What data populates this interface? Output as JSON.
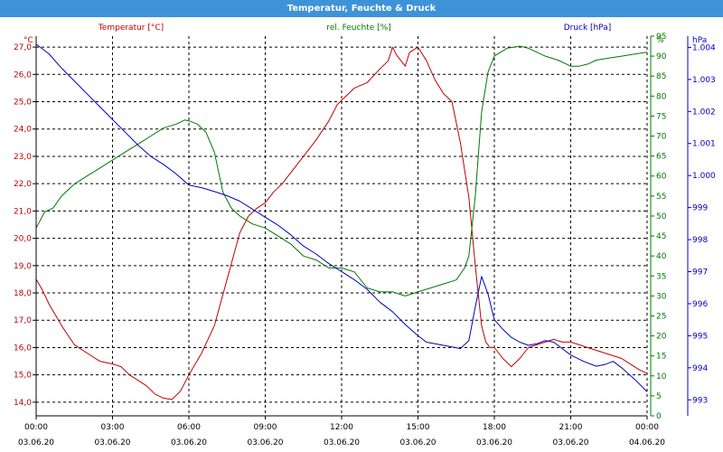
{
  "window": {
    "title": "Temperatur, Feuchte & Druck"
  },
  "colors": {
    "temperature": "#c00000",
    "humidity": "#007800",
    "pressure": "#0000c0",
    "titlebar": "#3e92d8",
    "grid": "#000000"
  },
  "chart_data": {
    "type": "line",
    "title": "Temperatur, Feuchte & Druck",
    "grid": true,
    "x_ticks": [
      {
        "time": "00:00",
        "date": "03.06.20"
      },
      {
        "time": "03:00",
        "date": "03.06.20"
      },
      {
        "time": "06:00",
        "date": "03.06.20"
      },
      {
        "time": "09:00",
        "date": "03.06.20"
      },
      {
        "time": "12:00",
        "date": "03.06.20"
      },
      {
        "time": "15:00",
        "date": "03.06.20"
      },
      {
        "time": "18:00",
        "date": "03.06.20"
      },
      {
        "time": "21:00",
        "date": "03.06.20"
      },
      {
        "time": "00:00",
        "date": "04.06.20"
      }
    ],
    "axes": {
      "temperature": {
        "unit": "°C",
        "range": [
          13.5,
          27.4
        ],
        "ticks": [
          "14,0",
          "15,0",
          "16,0",
          "17,0",
          "18,0",
          "19,0",
          "20,0",
          "21,0",
          "22,0",
          "23,0",
          "24,0",
          "25,0",
          "26,0",
          "27,0"
        ]
      },
      "humidity": {
        "unit": "%",
        "range": [
          0,
          95
        ],
        "ticks": [
          "0",
          "5",
          "10",
          "15",
          "20",
          "25",
          "30",
          "35",
          "40",
          "45",
          "50",
          "55",
          "60",
          "65",
          "70",
          "75",
          "80",
          "85",
          "90",
          "95"
        ]
      },
      "pressure": {
        "unit": "hPa",
        "range": [
          992.5,
          1004.35
        ],
        "ticks": [
          "993",
          "994",
          "995",
          "996",
          "997",
          "998",
          "999",
          "1.000",
          "1.001",
          "1.002",
          "1.003",
          "1.004"
        ]
      }
    },
    "series": [
      {
        "name": "Temperatur [°C]",
        "axis": "temperature",
        "x": [
          "00:00",
          "00:15",
          "00:30",
          "01:00",
          "01:30",
          "02:00",
          "02:30",
          "03:00",
          "03:20",
          "03:40",
          "04:00",
          "04:20",
          "04:40",
          "05:00",
          "05:20",
          "05:40",
          "06:00",
          "06:30",
          "07:00",
          "07:30",
          "08:00",
          "08:20",
          "08:40",
          "09:00",
          "09:20",
          "09:40",
          "10:00",
          "10:30",
          "11:00",
          "11:30",
          "11:50",
          "12:10",
          "12:30",
          "13:00",
          "13:30",
          "13:50",
          "14:00",
          "14:10",
          "14:30",
          "14:40",
          "15:00",
          "15:20",
          "15:40",
          "16:00",
          "16:20",
          "16:40",
          "17:00",
          "17:15",
          "17:30",
          "17:40",
          "17:50",
          "18:00",
          "18:20",
          "18:40",
          "19:00",
          "19:20",
          "19:40",
          "20:00",
          "20:20",
          "20:40",
          "21:00",
          "21:20",
          "21:40",
          "22:00",
          "22:20",
          "22:40",
          "23:00",
          "23:20",
          "23:40",
          "24:00"
        ],
        "values": [
          18.5,
          18.1,
          17.6,
          16.8,
          16.1,
          15.8,
          15.5,
          15.4,
          15.3,
          15.0,
          14.8,
          14.6,
          14.3,
          14.15,
          14.1,
          14.4,
          15.0,
          15.8,
          16.8,
          18.5,
          20.2,
          20.8,
          21.1,
          21.3,
          21.7,
          22.0,
          22.4,
          23.0,
          23.6,
          24.3,
          24.9,
          25.2,
          25.5,
          25.7,
          26.2,
          26.5,
          27.0,
          26.7,
          26.3,
          26.8,
          27.0,
          26.5,
          25.8,
          25.3,
          25.0,
          23.5,
          21.5,
          19.0,
          16.8,
          16.2,
          16.0,
          16.0,
          15.6,
          15.3,
          15.6,
          16.0,
          16.1,
          16.2,
          16.3,
          16.2,
          16.2,
          16.1,
          16.0,
          15.9,
          15.8,
          15.7,
          15.6,
          15.4,
          15.2,
          15.05
        ]
      },
      {
        "name": "rel. Feuchte [%]",
        "axis": "humidity",
        "x": [
          "00:00",
          "00:20",
          "00:40",
          "01:00",
          "01:30",
          "02:00",
          "02:30",
          "03:00",
          "03:30",
          "04:00",
          "04:30",
          "05:00",
          "05:30",
          "05:50",
          "06:00",
          "06:20",
          "06:40",
          "07:00",
          "07:20",
          "07:40",
          "08:00",
          "08:30",
          "09:00",
          "09:30",
          "10:00",
          "10:30",
          "11:00",
          "11:30",
          "12:00",
          "12:30",
          "13:00",
          "13:30",
          "14:00",
          "14:30",
          "15:00",
          "15:30",
          "16:00",
          "16:30",
          "16:50",
          "17:00",
          "17:15",
          "17:30",
          "17:45",
          "18:00",
          "18:30",
          "19:00",
          "19:20",
          "19:40",
          "20:00",
          "20:30",
          "21:00",
          "21:20",
          "21:40",
          "22:00",
          "22:30",
          "23:00",
          "23:30",
          "24:00"
        ],
        "values": [
          47,
          51,
          52,
          55,
          58,
          60,
          62,
          64,
          66,
          68,
          70,
          72,
          73,
          74,
          73.8,
          73,
          71,
          66,
          56,
          52,
          50,
          48,
          47,
          45,
          43,
          40,
          39,
          37,
          37,
          36,
          32,
          31,
          31,
          30,
          31,
          32,
          33,
          34,
          37,
          40,
          55,
          76,
          86,
          90,
          92,
          92.5,
          92,
          91,
          90,
          89,
          87.5,
          87.5,
          88,
          89,
          89.5,
          90,
          90.5,
          91
        ]
      },
      {
        "name": "Druck [hPa]",
        "axis": "pressure",
        "x": [
          "00:00",
          "00:30",
          "01:00",
          "01:30",
          "02:00",
          "02:30",
          "03:00",
          "03:30",
          "04:00",
          "04:30",
          "05:00",
          "05:30",
          "06:00",
          "06:30",
          "07:00",
          "07:30",
          "08:00",
          "08:30",
          "09:00",
          "09:30",
          "10:00",
          "10:30",
          "11:00",
          "11:30",
          "12:00",
          "12:30",
          "13:00",
          "13:30",
          "14:00",
          "14:30",
          "15:00",
          "15:20",
          "15:40",
          "16:00",
          "16:20",
          "16:40",
          "17:00",
          "17:15",
          "17:30",
          "17:45",
          "18:00",
          "18:20",
          "18:40",
          "19:00",
          "19:20",
          "19:40",
          "20:00",
          "20:20",
          "20:40",
          "21:00",
          "21:30",
          "22:00",
          "22:20",
          "22:40",
          "23:00",
          "23:30",
          "24:00"
        ],
        "values": [
          1004.1,
          1003.8,
          1003.35,
          1002.95,
          1002.55,
          1002.15,
          1001.75,
          1001.35,
          1000.95,
          1000.6,
          1000.35,
          1000.05,
          999.7,
          999.62,
          999.5,
          999.37,
          999.2,
          998.95,
          998.7,
          998.45,
          998.15,
          997.8,
          997.55,
          997.25,
          997.0,
          996.75,
          996.45,
          996.05,
          995.75,
          995.35,
          995.0,
          994.8,
          994.75,
          994.7,
          994.65,
          994.6,
          994.85,
          995.9,
          996.85,
          996.3,
          995.5,
          995.2,
          994.95,
          994.8,
          994.7,
          994.75,
          994.85,
          994.8,
          994.6,
          994.4,
          994.2,
          994.05,
          994.1,
          994.2,
          994.0,
          993.65,
          993.25
        ]
      }
    ]
  }
}
